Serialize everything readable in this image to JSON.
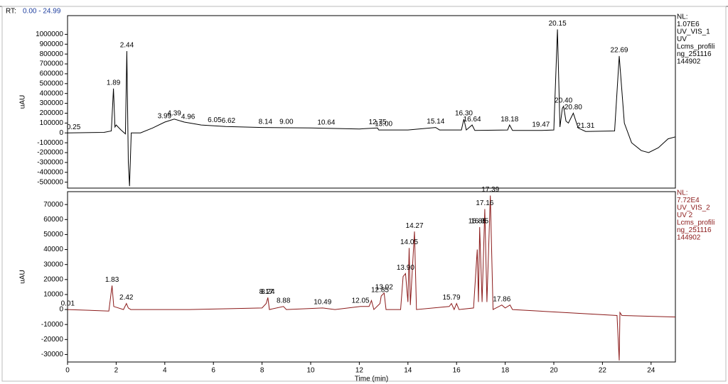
{
  "header": {
    "prefix": "RT:",
    "range": "0.00 - 24.99"
  },
  "chart_data": [
    {
      "type": "line",
      "y_label": "uAU",
      "side_text": [
        "NL:",
        "1.07E6",
        "UV_VIS_1",
        "UV",
        "Lcms_profili",
        "ng_251116",
        "144902"
      ],
      "xlim": [
        0,
        25
      ],
      "ylim": [
        -560000,
        1190000
      ],
      "yticks": [
        -500000,
        -400000,
        -300000,
        -200000,
        -100000,
        0,
        100000,
        200000,
        300000,
        400000,
        500000,
        600000,
        700000,
        800000,
        900000,
        1000000
      ],
      "x": [
        0,
        1.5,
        1.8,
        1.89,
        1.95,
        2.0,
        2.2,
        2.38,
        2.44,
        2.5,
        2.55,
        2.62,
        3.0,
        3.5,
        4.0,
        4.39,
        4.8,
        5.5,
        6.5,
        8,
        10,
        12,
        12.75,
        12.8,
        14,
        15.14,
        15.3,
        16.2,
        16.3,
        16.4,
        16.64,
        16.75,
        18.1,
        18.18,
        18.3,
        19.5,
        20.0,
        20.15,
        20.25,
        20.35,
        20.4,
        20.5,
        20.6,
        20.8,
        21.0,
        21.31,
        22.5,
        22.69,
        22.9,
        23.2,
        23.6,
        23.9,
        24.3,
        24.7,
        25
      ],
      "series": [
        {
          "color": "#000000",
          "values": [
            0,
            5000,
            20000,
            450000,
            60000,
            80000,
            30000,
            -10000,
            830000,
            -300000,
            -540000,
            0,
            0,
            50000,
            110000,
            140000,
            110000,
            80000,
            65000,
            55000,
            50000,
            40000,
            50000,
            30000,
            30000,
            55000,
            30000,
            30000,
            140000,
            30000,
            80000,
            25000,
            30000,
            80000,
            25000,
            25000,
            30000,
            1050000,
            60000,
            250000,
            270000,
            120000,
            100000,
            200000,
            50000,
            15000,
            20000,
            780000,
            100000,
            -100000,
            -180000,
            -200000,
            -150000,
            -60000,
            -40000
          ]
        }
      ],
      "annotations": [
        {
          "text": "0.25",
          "x": 0.25
        },
        {
          "text": "1.89",
          "x": 1.89
        },
        {
          "text": "2.44",
          "x": 2.44
        },
        {
          "text": "3.99",
          "x": 3.99
        },
        {
          "text": "4.39",
          "x": 4.39
        },
        {
          "text": "4.96",
          "x": 4.96
        },
        {
          "text": "6.05",
          "x": 6.05
        },
        {
          "text": "6.62",
          "x": 6.62
        },
        {
          "text": "8.14",
          "x": 8.14
        },
        {
          "text": "9.00",
          "x": 9.0
        },
        {
          "text": "10.64",
          "x": 10.64
        },
        {
          "text": "12.75",
          "x": 12.75
        },
        {
          "text": "13.00",
          "x": 13.0
        },
        {
          "text": "15.14",
          "x": 15.14
        },
        {
          "text": "16.30",
          "x": 16.3
        },
        {
          "text": "16.64",
          "x": 16.64
        },
        {
          "text": "18.18",
          "x": 18.18
        },
        {
          "text": "19.47",
          "x": 19.47
        },
        {
          "text": "20.15",
          "x": 20.15
        },
        {
          "text": "20.40",
          "x": 20.4
        },
        {
          "text": "20.80",
          "x": 20.8
        },
        {
          "text": "21.31",
          "x": 21.31
        },
        {
          "text": "22.69",
          "x": 22.69
        }
      ]
    },
    {
      "type": "line",
      "y_label": "uAU",
      "x_label": "Time (min)",
      "side_text": [
        "NL:",
        "7.72E4",
        "UV_VIS_2",
        "UV 2",
        "Lcms_profili",
        "ng_251116",
        "144902"
      ],
      "xlim": [
        0,
        25
      ],
      "ylim": [
        -35000,
        78600
      ],
      "xticks": [
        0,
        2,
        4,
        6,
        8,
        10,
        12,
        14,
        16,
        18,
        20,
        22,
        24
      ],
      "yticks": [
        -30000,
        -20000,
        -10000,
        0,
        10000,
        20000,
        30000,
        40000,
        50000,
        60000,
        70000
      ],
      "x": [
        0,
        1.7,
        1.83,
        1.9,
        2.3,
        2.42,
        2.5,
        2.6,
        5,
        8.0,
        8.17,
        8.24,
        8.3,
        8.88,
        9,
        10.49,
        11,
        12.05,
        12.4,
        12.5,
        12.6,
        12.85,
        12.9,
        13.02,
        13.1,
        13.7,
        13.8,
        13.9,
        14.0,
        14.05,
        14.1,
        14.27,
        14.35,
        15.7,
        15.79,
        15.9,
        16.0,
        16.1,
        16.7,
        16.85,
        16.9,
        16.95,
        17.05,
        17.16,
        17.25,
        17.39,
        17.5,
        17.86,
        18.0,
        18.2,
        18.3,
        22.6,
        22.69,
        22.72,
        22.8,
        25
      ],
      "series": [
        {
          "color": "#8b1a1a",
          "values": [
            0,
            -1000,
            16000,
            2000,
            0,
            4000,
            1000,
            0,
            0,
            1000,
            4000,
            8000,
            0,
            2000,
            0,
            1000,
            0,
            2000,
            2000,
            6000,
            0,
            4000,
            9000,
            11000,
            0,
            0,
            22000,
            24000,
            5000,
            41000,
            3000,
            52000,
            0,
            2000,
            4000,
            0,
            4000,
            0,
            1000,
            40000,
            5000,
            55000,
            5000,
            67000,
            5000,
            76000,
            0,
            3000,
            1000,
            3000,
            0,
            -4000,
            -34000,
            -2000,
            -4000,
            -5000
          ]
        }
      ],
      "annotations": [
        {
          "text": "0.01",
          "x": 0.01
        },
        {
          "text": "1.83",
          "x": 1.83
        },
        {
          "text": "2.42",
          "x": 2.42
        },
        {
          "text": "8.17",
          "x": 8.17
        },
        {
          "text": "8.24",
          "x": 8.24
        },
        {
          "text": "8.88",
          "x": 8.88
        },
        {
          "text": "10.49",
          "x": 10.49
        },
        {
          "text": "12.05",
          "x": 12.05
        },
        {
          "text": "12.85",
          "x": 12.85
        },
        {
          "text": "13.02",
          "x": 13.02
        },
        {
          "text": "13.90",
          "x": 13.9
        },
        {
          "text": "14.05",
          "x": 14.05
        },
        {
          "text": "14.27",
          "x": 14.27
        },
        {
          "text": "15.79",
          "x": 15.79
        },
        {
          "text": "16.85",
          "x": 16.85
        },
        {
          "text": "16.95",
          "x": 16.95
        },
        {
          "text": "17.16",
          "x": 17.16
        },
        {
          "text": "17.39",
          "x": 17.39
        },
        {
          "text": "17.86",
          "x": 17.86
        }
      ]
    }
  ]
}
